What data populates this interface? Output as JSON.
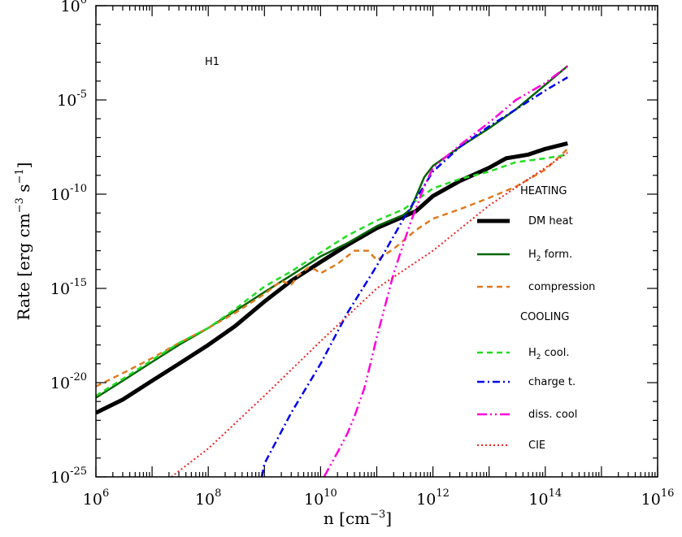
{
  "chart_data": {
    "type": "line",
    "title": "",
    "panel_label": "H1",
    "xscale": "log",
    "yscale": "log",
    "xlim": [
      1000000.0,
      1e+16
    ],
    "ylim": [
      1e-25,
      1
    ],
    "xlabel": {
      "main": "n ",
      "bracket_open": "[cm",
      "sup": "−3",
      "bracket_close": "]"
    },
    "ylabel": {
      "p1": "Rate [erg cm",
      "s1": "−3",
      "p2": " s",
      "s2": "−1",
      "p3": "]"
    },
    "x_ticks": [
      {
        "base": "10",
        "exp": "6",
        "value": 1000000.0
      },
      {
        "base": "10",
        "exp": "8",
        "value": 100000000.0
      },
      {
        "base": "10",
        "exp": "10",
        "value": 10000000000.0
      },
      {
        "base": "10",
        "exp": "12",
        "value": 1000000000000.0
      },
      {
        "base": "10",
        "exp": "14",
        "value": 100000000000000.0
      },
      {
        "base": "10",
        "exp": "16",
        "value": 1e+16
      }
    ],
    "y_ticks": [
      {
        "base": "10",
        "exp": "0",
        "value": 1
      },
      {
        "base": "10",
        "exp": "-5",
        "value": 1e-05
      },
      {
        "base": "10",
        "exp": "-10",
        "value": 1e-10
      },
      {
        "base": "10",
        "exp": "-15",
        "value": 1e-15
      },
      {
        "base": "10",
        "exp": "-20",
        "value": 1e-20
      },
      {
        "base": "10",
        "exp": "-25",
        "value": 1e-25
      }
    ],
    "legend_headers": {
      "heating": "HEATING",
      "cooling": "COOLING"
    },
    "series": [
      {
        "name": "DM heat",
        "group": "heating",
        "color": "#000000",
        "width": 5,
        "dash": "",
        "points": [
          [
            1000000.0,
            -21.6
          ],
          [
            3000000.0,
            -20.9
          ],
          [
            10000000.0,
            -19.9
          ],
          [
            30000000.0,
            -19.0
          ],
          [
            100000000.0,
            -18.0
          ],
          [
            300000000.0,
            -17.0
          ],
          [
            1000000000.0,
            -15.7
          ],
          [
            3000000000.0,
            -14.6
          ],
          [
            10000000000.0,
            -13.6
          ],
          [
            30000000000.0,
            -12.7
          ],
          [
            100000000000.0,
            -11.8
          ],
          [
            500000000000.0,
            -10.9
          ],
          [
            1000000000000.0,
            -10.1
          ],
          [
            3000000000000.0,
            -9.3
          ],
          [
            10000000000000.0,
            -8.6
          ],
          [
            20000000000000.0,
            -8.1
          ],
          [
            50000000000000.0,
            -7.9
          ],
          [
            100000000000000.0,
            -7.6
          ],
          [
            250000000000000.0,
            -7.3
          ]
        ]
      },
      {
        "name": "H₂ form.",
        "nameMain": "H",
        "nameSub": "2",
        "nameRest": " form.",
        "group": "heating",
        "color": "#006400",
        "width": 2.5,
        "dash": "",
        "points": [
          [
            1000000.0,
            -20.8
          ],
          [
            3000000.0,
            -19.9
          ],
          [
            10000000.0,
            -18.9
          ],
          [
            30000000.0,
            -18.0
          ],
          [
            100000000.0,
            -17.1
          ],
          [
            300000000.0,
            -16.2
          ],
          [
            1000000000.0,
            -15.2
          ],
          [
            3000000000.0,
            -14.3
          ],
          [
            10000000000.0,
            -13.3
          ],
          [
            30000000000.0,
            -12.6
          ],
          [
            100000000000.0,
            -11.7
          ],
          [
            300000000000.0,
            -11.1
          ],
          [
            400000000000.0,
            -10.8
          ],
          [
            700000000000.0,
            -9.1
          ],
          [
            1000000000000.0,
            -8.5
          ],
          [
            3000000000000.0,
            -7.5
          ],
          [
            10000000000000.0,
            -6.5
          ],
          [
            30000000000000.0,
            -5.5
          ],
          [
            100000000000000.0,
            -4.2
          ],
          [
            250000000000000.0,
            -3.2
          ]
        ]
      },
      {
        "name": "compression",
        "group": "heating",
        "color": "#E07A1F",
        "width": 2.5,
        "dash": "7,5",
        "points": [
          [
            1000000.0,
            -20.2
          ],
          [
            3000000.0,
            -19.5
          ],
          [
            10000000.0,
            -18.7
          ],
          [
            30000000.0,
            -17.9
          ],
          [
            100000000.0,
            -17.1
          ],
          [
            300000000.0,
            -16.3
          ],
          [
            1000000000.0,
            -15.3
          ],
          [
            2000000000.0,
            -14.6
          ],
          [
            3000000000.0,
            -14.8
          ],
          [
            4000000000.0,
            -14.3
          ],
          [
            6000000000.0,
            -13.9
          ],
          [
            8000000000.0,
            -14.0
          ],
          [
            10000000000.0,
            -14.2
          ],
          [
            20000000000.0,
            -13.7
          ],
          [
            40000000000.0,
            -13.0
          ],
          [
            70000000000.0,
            -13.0
          ],
          [
            100000000000.0,
            -13.5
          ],
          [
            200000000000.0,
            -12.9
          ],
          [
            500000000000.0,
            -11.9
          ],
          [
            1000000000000.0,
            -11.3
          ],
          [
            3000000000000.0,
            -10.8
          ],
          [
            10000000000000.0,
            -10.2
          ],
          [
            30000000000000.0,
            -9.6
          ],
          [
            100000000000000.0,
            -8.7
          ],
          [
            250000000000000.0,
            -7.6
          ]
        ]
      },
      {
        "name": "H₂ cool.",
        "nameMain": "H",
        "nameSub": "2",
        "nameRest": " cool.",
        "group": "cooling",
        "color": "#22DD22",
        "width": 2.5,
        "dash": "7,5",
        "points": [
          [
            1000000.0,
            -20.7
          ],
          [
            3000000.0,
            -19.8
          ],
          [
            10000000.0,
            -18.8
          ],
          [
            30000000.0,
            -17.9
          ],
          [
            100000000.0,
            -17.1
          ],
          [
            300000000.0,
            -16.1
          ],
          [
            1000000000.0,
            -14.9
          ],
          [
            3000000000.0,
            -14.1
          ],
          [
            10000000000.0,
            -13.1
          ],
          [
            30000000000.0,
            -12.2
          ],
          [
            100000000000.0,
            -11.4
          ],
          [
            300000000000.0,
            -10.8
          ],
          [
            1000000000000.0,
            -9.7
          ],
          [
            3000000000000.0,
            -9.2
          ],
          [
            10000000000000.0,
            -8.8
          ],
          [
            30000000000000.0,
            -8.3
          ],
          [
            100000000000000.0,
            -8.1
          ],
          [
            250000000000000.0,
            -7.9
          ]
        ]
      },
      {
        "name": "charge t.",
        "group": "cooling",
        "color": "#0000EE",
        "width": 2.5,
        "dash": "9,4,2,4",
        "points": [
          [
            900000000.0,
            -25.0
          ],
          [
            1000000000.0,
            -24.3
          ],
          [
            3000000000.0,
            -21.6
          ],
          [
            10000000000.0,
            -19.0
          ],
          [
            30000000000.0,
            -16.3
          ],
          [
            100000000000.0,
            -13.8
          ],
          [
            300000000000.0,
            -11.3
          ],
          [
            1000000000000.0,
            -8.8
          ],
          [
            3000000000000.0,
            -7.5
          ],
          [
            10000000000000.0,
            -6.4
          ],
          [
            30000000000000.0,
            -5.5
          ],
          [
            100000000000000.0,
            -4.5
          ],
          [
            250000000000000.0,
            -3.8
          ]
        ]
      },
      {
        "name": "diss. cool",
        "group": "cooling",
        "color": "#FF00DD",
        "width": 2.5,
        "dash": "12,4,2,4,2,4",
        "points": [
          [
            11500000000.0,
            -25.0
          ],
          [
            20000000000.0,
            -23.7
          ],
          [
            30000000000.0,
            -22.7
          ],
          [
            40000000000.0,
            -21.8
          ],
          [
            60000000000.0,
            -20.3
          ],
          [
            80000000000.0,
            -18.8
          ],
          [
            100000000000.0,
            -17.6
          ],
          [
            200000000000.0,
            -14.2
          ],
          [
            400000000000.0,
            -11.5
          ],
          [
            700000000000.0,
            -9.6
          ],
          [
            1000000000000.0,
            -8.6
          ],
          [
            3000000000000.0,
            -7.4
          ],
          [
            10000000000000.0,
            -6.2
          ],
          [
            30000000000000.0,
            -5.0
          ],
          [
            100000000000000.0,
            -4.1
          ],
          [
            250000000000000.0,
            -3.2
          ]
        ]
      },
      {
        "name": "CIE",
        "group": "cooling",
        "color": "#EE2222",
        "width": 2,
        "dash": "2,3",
        "points": [
          [
            22000000.0,
            -25.0
          ],
          [
            100000000.0,
            -23.5
          ],
          [
            1000000000.0,
            -20.7
          ],
          [
            10000000000.0,
            -17.8
          ],
          [
            100000000000.0,
            -15.0
          ],
          [
            1000000000000.0,
            -13.0
          ],
          [
            10000000000000.0,
            -10.6
          ],
          [
            100000000000000.0,
            -8.6
          ],
          [
            250000000000000.0,
            -7.8
          ]
        ]
      }
    ]
  }
}
